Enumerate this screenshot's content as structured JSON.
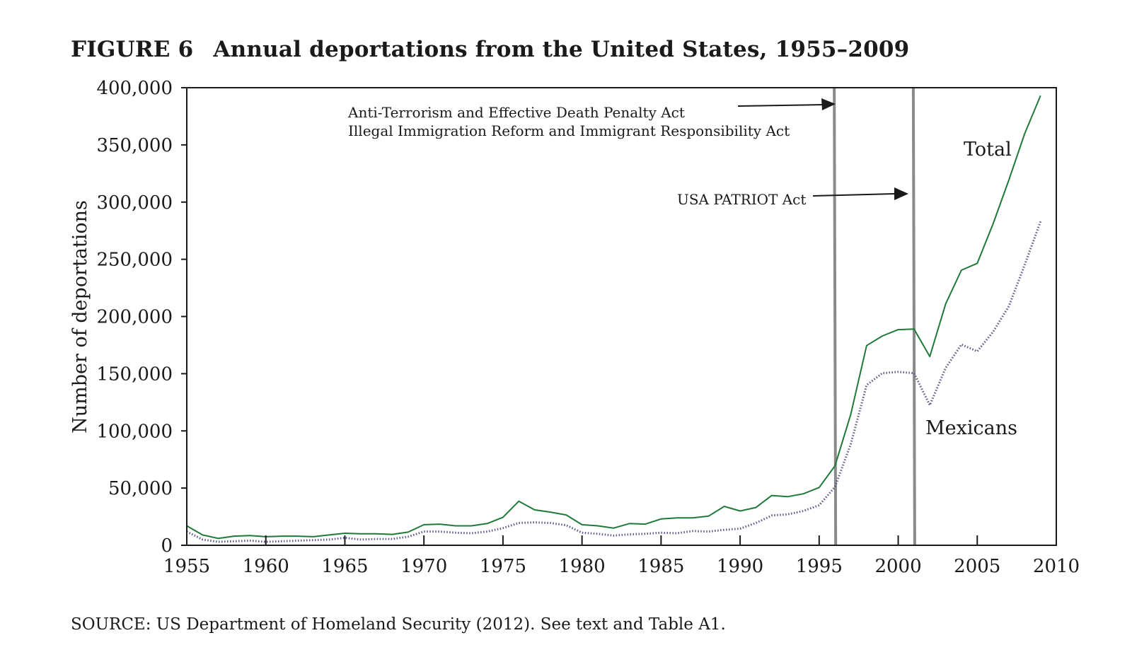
{
  "figure": {
    "label": "FIGURE 6",
    "title": "Annual deportations from the United States, 1955–2009",
    "source": "SOURCE: US Department of Homeland Security (2012). See text and Table A1."
  },
  "colors": {
    "total": "#1f7a3a",
    "mexicans": "#5a5a8a",
    "vline": "#8a8a8a",
    "axis": "#1a1a1a"
  },
  "chart_data": {
    "type": "line",
    "title": "Annual deportations from the United States, 1955–2009",
    "xlabel": "",
    "ylabel": "Number of deportations",
    "xlim": [
      1955,
      2010
    ],
    "ylim": [
      0,
      400000
    ],
    "xticks": [
      1955,
      1960,
      1965,
      1970,
      1975,
      1980,
      1985,
      1990,
      1995,
      2000,
      2005,
      2010
    ],
    "yticks": [
      0,
      50000,
      100000,
      150000,
      200000,
      250000,
      300000,
      350000,
      400000
    ],
    "xtick_labels": [
      "1955",
      "1960",
      "1965",
      "1970",
      "1975",
      "1980",
      "1985",
      "1990",
      "1995",
      "2000",
      "2005",
      "2010"
    ],
    "ytick_labels": [
      "0",
      "50,000",
      "100,000",
      "150,000",
      "200,000",
      "250,000",
      "300,000",
      "350,000",
      "400,000"
    ],
    "grid": false,
    "series": [
      {
        "name": "Total",
        "style": "solid",
        "x": [
          1955,
          1956,
          1957,
          1958,
          1959,
          1960,
          1961,
          1962,
          1963,
          1964,
          1965,
          1966,
          1967,
          1968,
          1969,
          1970,
          1971,
          1972,
          1973,
          1974,
          1975,
          1976,
          1977,
          1978,
          1979,
          1980,
          1981,
          1982,
          1983,
          1984,
          1985,
          1986,
          1987,
          1988,
          1989,
          1990,
          1991,
          1992,
          1993,
          1994,
          1995,
          1996,
          1997,
          1998,
          1999,
          2000,
          2001,
          2002,
          2003,
          2004,
          2005,
          2006,
          2007,
          2008,
          2009
        ],
        "values": [
          17000,
          9000,
          6000,
          8000,
          8500,
          7500,
          8000,
          8000,
          7500,
          9000,
          10500,
          10000,
          10000,
          9500,
          11500,
          18000,
          18500,
          17000,
          17000,
          19000,
          24500,
          38500,
          31000,
          29000,
          26500,
          18000,
          17000,
          15000,
          19000,
          18500,
          23000,
          24000,
          24000,
          25500,
          34000,
          30000,
          33000,
          43500,
          42500,
          45000,
          50500,
          69500,
          114500,
          174500,
          183000,
          188500,
          189000,
          165000,
          211000,
          240500,
          246500,
          280900,
          319400,
          359800,
          393000
        ]
      },
      {
        "name": "Mexicans",
        "style": "dotted",
        "x": [
          1955,
          1956,
          1957,
          1958,
          1959,
          1960,
          1961,
          1962,
          1963,
          1964,
          1965,
          1966,
          1967,
          1968,
          1969,
          1970,
          1971,
          1972,
          1973,
          1974,
          1975,
          1976,
          1977,
          1978,
          1979,
          1980,
          1981,
          1982,
          1983,
          1984,
          1985,
          1986,
          1987,
          1988,
          1989,
          1990,
          1991,
          1992,
          1993,
          1994,
          1995,
          1996,
          1997,
          1998,
          1999,
          2000,
          2001,
          2002,
          2003,
          2004,
          2005,
          2006,
          2007,
          2008,
          2009
        ],
        "values": [
          12000,
          5000,
          3000,
          3500,
          4000,
          3000,
          3500,
          4000,
          4500,
          5000,
          6500,
          5000,
          5500,
          5500,
          7500,
          12000,
          12000,
          11000,
          10500,
          12000,
          15000,
          19500,
          20000,
          19500,
          17500,
          11000,
          10000,
          8500,
          9500,
          10000,
          11000,
          10500,
          12500,
          12000,
          13500,
          14500,
          19500,
          26000,
          27000,
          30000,
          35000,
          51000,
          88500,
          140000,
          150500,
          151500,
          150500,
          122500,
          155000,
          175500,
          169500,
          186500,
          209000,
          245000,
          283000
        ]
      }
    ],
    "vertical_lines": [
      {
        "x": 1996,
        "label_lines": [
          "Anti-Terrorism and Effective Death Penalty Act",
          "Illegal Immigration Reform and Immigrant Responsibility Act"
        ]
      },
      {
        "x": 2001,
        "label_lines": [
          "USA PATRIOT Act"
        ]
      }
    ]
  }
}
